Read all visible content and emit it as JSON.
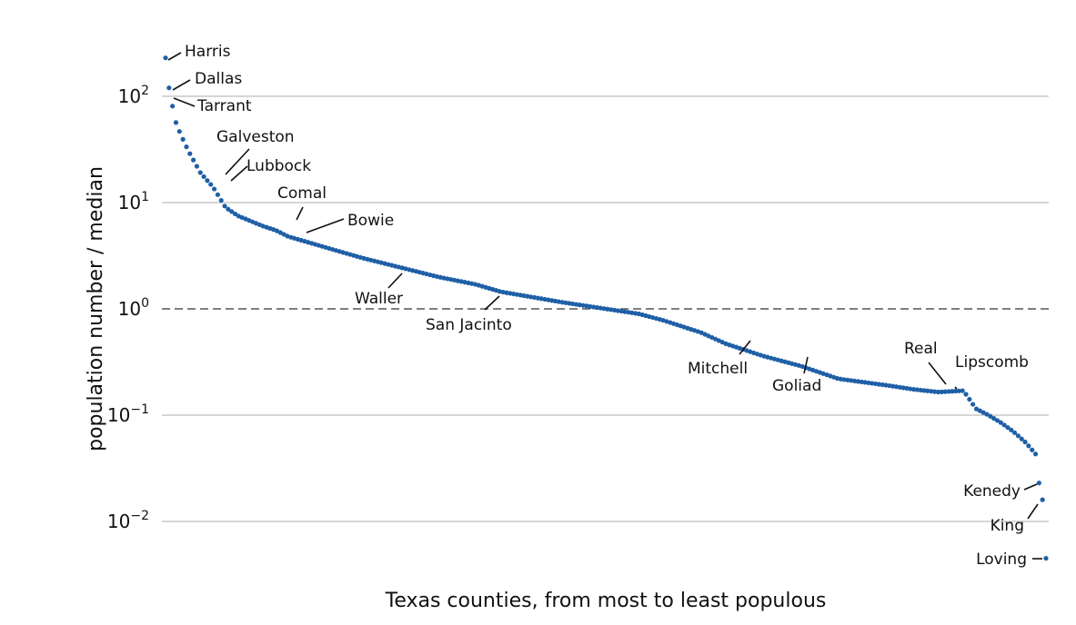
{
  "chart_data": {
    "type": "scatter",
    "title": "",
    "xlabel": "Texas counties, from most to least populous",
    "ylabel": "population number / median",
    "yscale": "log",
    "ylim": [
      0.004,
      250
    ],
    "grid": "horizontal",
    "reference_line": {
      "y": 1,
      "style": "dashed"
    },
    "point_color": "#1f5fa6",
    "yticks": [
      {
        "value": 0.01,
        "base": "10",
        "exp": "−2"
      },
      {
        "value": 0.1,
        "base": "10",
        "exp": "−1"
      },
      {
        "value": 1,
        "base": "10",
        "exp": "0"
      },
      {
        "value": 10,
        "base": "10",
        "exp": "1"
      },
      {
        "value": 100,
        "base": "10",
        "exp": "2"
      }
    ],
    "n_counties": 254,
    "anchors": [
      [
        1,
        230
      ],
      [
        2,
        135
      ],
      [
        3,
        100
      ],
      [
        5,
        58
      ],
      [
        7,
        44
      ],
      [
        10,
        31
      ],
      [
        15,
        19
      ],
      [
        20,
        14
      ],
      [
        25,
        9
      ],
      [
        30,
        7.5
      ],
      [
        40,
        6
      ],
      [
        45,
        5.5
      ],
      [
        50,
        4.8
      ],
      [
        60,
        4.1
      ],
      [
        70,
        3.5
      ],
      [
        80,
        3.0
      ],
      [
        95,
        2.45
      ],
      [
        110,
        2.0
      ],
      [
        125,
        1.7
      ],
      [
        135,
        1.45
      ],
      [
        160,
        1.15
      ],
      [
        190,
        0.9
      ],
      [
        200,
        0.78
      ],
      [
        215,
        0.6
      ],
      [
        225,
        0.47
      ],
      [
        240,
        0.36
      ],
      [
        255,
        0.29
      ],
      [
        270,
        0.22
      ],
      [
        290,
        0.19
      ],
      [
        300,
        0.175
      ],
      [
        310,
        0.165
      ],
      [
        320,
        0.17
      ],
      [
        325,
        0.115
      ],
      [
        330,
        0.1
      ],
      [
        335,
        0.085
      ],
      [
        340,
        0.07
      ],
      [
        345,
        0.055
      ],
      [
        350,
        0.04
      ],
      [
        353,
        0.035
      ]
    ],
    "anchor_span": 353,
    "extra_points": [
      {
        "rank": 252,
        "value": 0.023
      },
      {
        "rank": 253,
        "value": 0.016
      },
      {
        "rank": 254,
        "value": 0.0045
      }
    ],
    "annotations": [
      {
        "label": "Harris",
        "rank": 1,
        "value": 230
      },
      {
        "label": "Dallas",
        "rank": 2,
        "value": 135
      },
      {
        "label": "Tarrant",
        "rank": 3,
        "value": 100
      },
      {
        "label": "Galveston",
        "rank": 20,
        "value": 17
      },
      {
        "label": "Lubbock",
        "rank": 22,
        "value": 15
      },
      {
        "label": "Comal",
        "rank": 41,
        "value": 5.9
      },
      {
        "label": "Bowie",
        "rank": 45,
        "value": 5.0
      },
      {
        "label": "Waller",
        "rank": 73,
        "value": 2.5
      },
      {
        "label": "San Jacinto",
        "rank": 100,
        "value": 1.4
      },
      {
        "label": "Mitchell",
        "rank": 167,
        "value": 0.57
      },
      {
        "label": "Goliad",
        "rank": 184,
        "value": 0.4
      },
      {
        "label": "Real",
        "rank": 223,
        "value": 0.18
      },
      {
        "label": "Lipscomb",
        "rank": 228,
        "value": 0.165
      },
      {
        "label": "Kenedy",
        "rank": 252,
        "value": 0.023
      },
      {
        "label": "King",
        "rank": 253,
        "value": 0.016
      },
      {
        "label": "Loving",
        "rank": 254,
        "value": 0.0045
      }
    ]
  }
}
